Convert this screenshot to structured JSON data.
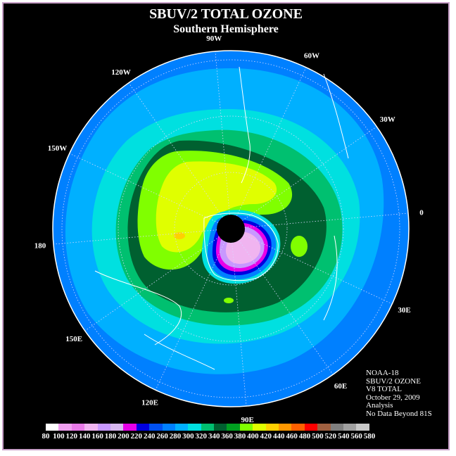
{
  "title": "SBUV/2 TOTAL OZONE",
  "subtitle": "Southern Hemisphere",
  "longitude_labels": [
    "90W",
    "60W",
    "30W",
    "0",
    "30E",
    "60E",
    "90E",
    "120E",
    "150E",
    "180",
    "150W",
    "120W"
  ],
  "info": {
    "satellite": "NOAA-18",
    "instrument": "SBUV/2 OZONE",
    "algorithm": "V8 TOTAL",
    "date": "October 29, 2009",
    "product": "Analysis",
    "note": "No Data Beyond 81S"
  },
  "colorbar": {
    "ticks": [
      "80",
      "100",
      "120",
      "140",
      "160",
      "180",
      "200",
      "220",
      "240",
      "260",
      "280",
      "300",
      "320",
      "340",
      "360",
      "380",
      "400",
      "420",
      "440",
      "460",
      "480",
      "500",
      "520",
      "540",
      "560",
      "580"
    ],
    "colors": [
      "#ffffff",
      "#f0a0f0",
      "#e87ae8",
      "#f0b4f0",
      "#c898ff",
      "#d8b8f0",
      "#e800e8",
      "#0000e0",
      "#0050f0",
      "#0080ff",
      "#00b0ff",
      "#00e0e0",
      "#00c070",
      "#006030",
      "#00a020",
      "#80ff00",
      "#e0ff00",
      "#ffd000",
      "#ff9800",
      "#ff6000",
      "#ff0000",
      "#a06040",
      "#808080",
      "#a0a0a0",
      "#c8c8c8"
    ]
  }
}
